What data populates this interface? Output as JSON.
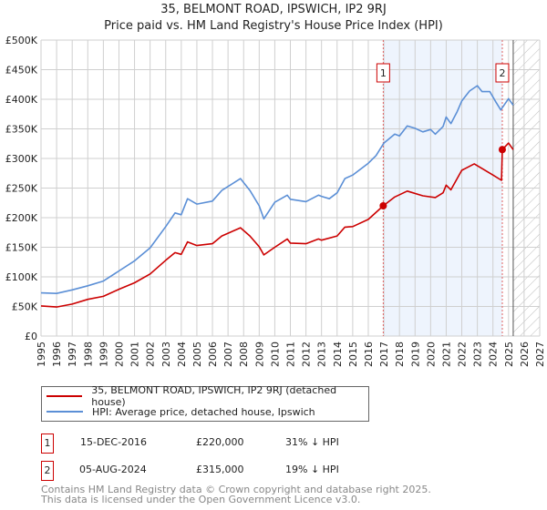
{
  "title": "35, BELMONT ROAD, IPSWICH, IP2 9RJ",
  "subtitle": "Price paid vs. HM Land Registry's House Price Index (HPI)",
  "chart_data": {
    "type": "line",
    "xlim": [
      1995,
      2027
    ],
    "ylim": [
      0,
      500000
    ],
    "x_ticks": [
      "1995",
      "1996",
      "1997",
      "1998",
      "1999",
      "2000",
      "2001",
      "2002",
      "2003",
      "2004",
      "2005",
      "2006",
      "2007",
      "2008",
      "2009",
      "2010",
      "2011",
      "2012",
      "2013",
      "2014",
      "2015",
      "2016",
      "2017",
      "2018",
      "2019",
      "2020",
      "2021",
      "2022",
      "2023",
      "2024",
      "2025",
      "2026",
      "2027"
    ],
    "y_ticks": [
      {
        "value": 0,
        "label": "£0"
      },
      {
        "value": 50000,
        "label": "£50K"
      },
      {
        "value": 100000,
        "label": "£100K"
      },
      {
        "value": 150000,
        "label": "£150K"
      },
      {
        "value": 200000,
        "label": "£200K"
      },
      {
        "value": 250000,
        "label": "£250K"
      },
      {
        "value": 300000,
        "label": "£300K"
      },
      {
        "value": 350000,
        "label": "£350K"
      },
      {
        "value": 400000,
        "label": "£400K"
      },
      {
        "value": 450000,
        "label": "£450K"
      },
      {
        "value": 500000,
        "label": "£500K"
      }
    ],
    "grid": true,
    "shaded_range": [
      2016.96,
      2024.6
    ],
    "forecast_hatch_from": 2025.3,
    "series": [
      {
        "name": "35, BELMONT ROAD, IPSWICH, IP2 9RJ (detached house)",
        "color": "#cc0000",
        "x": [
          1995,
          1996,
          1997,
          1998,
          1999,
          2000,
          2001,
          2002,
          2003,
          2003.6,
          2004,
          2004.4,
          2005,
          2006,
          2006.6,
          2007.8,
          2008.4,
          2009,
          2009.3,
          2010,
          2010.8,
          2011,
          2012,
          2012.8,
          2013,
          2014,
          2014.5,
          2015,
          2016,
          2016.96,
          2017.7,
          2018.5,
          2019.5,
          2020.3,
          2020.8,
          2021,
          2021.3,
          2022,
          2022.8,
          2023.3,
          2024,
          2024.55,
          2024.6,
          2025,
          2025.3
        ],
        "y": [
          51000,
          49000,
          54000,
          62000,
          67000,
          79000,
          90000,
          105000,
          128000,
          141000,
          138000,
          159000,
          153000,
          156000,
          169000,
          183000,
          169000,
          151000,
          137000,
          150000,
          164000,
          157000,
          156000,
          164000,
          162000,
          169000,
          184000,
          185000,
          197000,
          220000,
          235000,
          245000,
          237000,
          234000,
          242000,
          255000,
          247000,
          280000,
          291000,
          283000,
          272000,
          263000,
          315000,
          326000,
          315000
        ]
      },
      {
        "name": "HPI: Average price, detached house, Ipswich",
        "color": "#5b8fd6",
        "x": [
          1995,
          1996,
          1997,
          1998,
          1999,
          2000,
          2001,
          2002,
          2003,
          2003.6,
          2004,
          2004.4,
          2005,
          2006,
          2006.6,
          2007.8,
          2008.4,
          2009,
          2009.3,
          2010,
          2010.8,
          2011,
          2012,
          2012.8,
          2013,
          2013.5,
          2014,
          2014.5,
          2015,
          2016,
          2016.5,
          2017,
          2017.7,
          2018,
          2018.5,
          2019,
          2019.5,
          2020,
          2020.3,
          2020.8,
          2021,
          2021.3,
          2021.7,
          2022,
          2022.5,
          2023,
          2023.3,
          2023.8,
          2024.2,
          2024.5,
          2025,
          2025.3
        ],
        "y": [
          73000,
          72000,
          78000,
          85000,
          93000,
          110000,
          127000,
          149000,
          185000,
          208000,
          205000,
          232000,
          223000,
          228000,
          246000,
          266000,
          246000,
          220000,
          198000,
          226000,
          238000,
          231000,
          227000,
          238000,
          236000,
          232000,
          242000,
          266000,
          272000,
          292000,
          305000,
          326000,
          341000,
          338000,
          355000,
          351000,
          345000,
          349000,
          341000,
          354000,
          370000,
          359000,
          379000,
          397000,
          414000,
          423000,
          413000,
          413000,
          395000,
          382000,
          401000,
          390000
        ]
      }
    ],
    "sales": [
      {
        "label": "1",
        "x": 2016.96,
        "price": 220000
      },
      {
        "label": "2",
        "x": 2024.6,
        "price": 315000
      }
    ]
  },
  "legend": {
    "property": "35, BELMONT ROAD, IPSWICH, IP2 9RJ (detached house)",
    "hpi": "HPI: Average price, detached house, Ipswich"
  },
  "transactions": [
    {
      "num": "1",
      "date": "15-DEC-2016",
      "price": "£220,000",
      "diff": "31% ↓ HPI"
    },
    {
      "num": "2",
      "date": "05-AUG-2024",
      "price": "£315,000",
      "diff": "19% ↓ HPI"
    }
  ],
  "footer": {
    "line1": "Contains HM Land Registry data © Crown copyright and database right 2025.",
    "line2": "This data is licensed under the Open Government Licence v3.0."
  }
}
